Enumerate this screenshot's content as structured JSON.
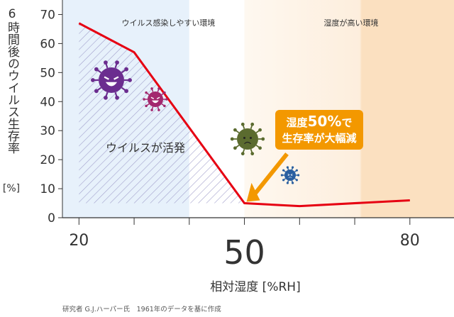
{
  "chart_data": {
    "type": "line",
    "ylabel": "6時間後のウイルス生存率",
    "ylabel_unit": "[%]",
    "xlabel": "相対湿度 [%RH]",
    "x": [
      20,
      30,
      50,
      60,
      80
    ],
    "series": [
      {
        "values": [
          67,
          57,
          5,
          4,
          6
        ],
        "color": "#e60012"
      }
    ],
    "ylim": [
      0,
      75
    ],
    "yticks": [
      0,
      10,
      20,
      30,
      40,
      50,
      60,
      70
    ],
    "xticks": [
      20,
      50,
      80
    ],
    "xlim": [
      17,
      88
    ],
    "regions": [
      {
        "label": "ウイルス感染しやすい環境",
        "from": 17,
        "to": 40,
        "color": "#e7f1fb"
      },
      {
        "label": "湿度が高い環境",
        "from": 50,
        "to": 88,
        "color": "#fdf0df"
      }
    ],
    "hatched_area_label": "ウイルスが活発",
    "callout": {
      "line1_a": "湿度",
      "line1_b": "50%",
      "line1_c": "で",
      "line2": "生存率が大幅減"
    },
    "source": "研究者 G.J.ハーパー氏　1961年のデータを基に作成"
  }
}
